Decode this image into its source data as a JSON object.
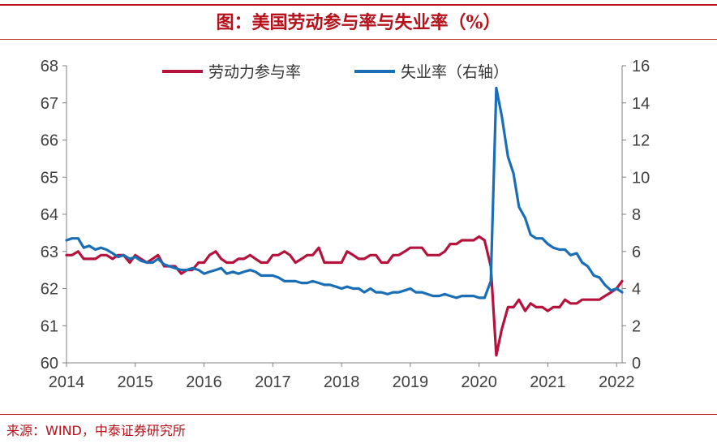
{
  "title": "图：美国劳动参与率与失业率（%）",
  "source": "来源：WIND，中泰证券研究所",
  "chart_data": {
    "type": "line",
    "title": "图：美国劳动参与率与失业率（%）",
    "x_range": [
      2014.0,
      2022.08
    ],
    "x_ticks": [
      "2014",
      "2015",
      "2016",
      "2017",
      "2018",
      "2019",
      "2020",
      "2021",
      "2022"
    ],
    "y_left": {
      "range": [
        60,
        68
      ],
      "ticks": [
        "60",
        "61",
        "62",
        "63",
        "64",
        "65",
        "66",
        "67",
        "68"
      ]
    },
    "y_right": {
      "range": [
        0,
        16
      ],
      "ticks": [
        "0",
        "2",
        "4",
        "6",
        "8",
        "10",
        "12",
        "14",
        "16"
      ]
    },
    "legend_position": "top-center",
    "grid": false,
    "series": [
      {
        "name": "劳动力参与率",
        "axis": "left",
        "color": "#b5123c",
        "points": [
          [
            2014.0,
            62.9
          ],
          [
            2014.08,
            62.9
          ],
          [
            2014.17,
            63.0
          ],
          [
            2014.25,
            62.8
          ],
          [
            2014.33,
            62.8
          ],
          [
            2014.42,
            62.8
          ],
          [
            2014.5,
            62.9
          ],
          [
            2014.58,
            62.9
          ],
          [
            2014.67,
            62.8
          ],
          [
            2014.75,
            62.9
          ],
          [
            2014.83,
            62.9
          ],
          [
            2014.92,
            62.7
          ],
          [
            2015.0,
            62.9
          ],
          [
            2015.08,
            62.8
          ],
          [
            2015.17,
            62.7
          ],
          [
            2015.25,
            62.8
          ],
          [
            2015.33,
            62.9
          ],
          [
            2015.42,
            62.6
          ],
          [
            2015.5,
            62.6
          ],
          [
            2015.58,
            62.6
          ],
          [
            2015.67,
            62.4
          ],
          [
            2015.75,
            62.5
          ],
          [
            2015.83,
            62.5
          ],
          [
            2015.92,
            62.7
          ],
          [
            2016.0,
            62.7
          ],
          [
            2016.08,
            62.9
          ],
          [
            2016.17,
            63.0
          ],
          [
            2016.25,
            62.8
          ],
          [
            2016.33,
            62.7
          ],
          [
            2016.42,
            62.7
          ],
          [
            2016.5,
            62.8
          ],
          [
            2016.58,
            62.8
          ],
          [
            2016.67,
            62.9
          ],
          [
            2016.75,
            62.8
          ],
          [
            2016.83,
            62.7
          ],
          [
            2016.92,
            62.7
          ],
          [
            2017.0,
            62.9
          ],
          [
            2017.08,
            62.9
          ],
          [
            2017.17,
            63.0
          ],
          [
            2017.25,
            62.9
          ],
          [
            2017.33,
            62.7
          ],
          [
            2017.42,
            62.8
          ],
          [
            2017.5,
            62.9
          ],
          [
            2017.58,
            62.9
          ],
          [
            2017.67,
            63.1
          ],
          [
            2017.75,
            62.7
          ],
          [
            2017.83,
            62.7
          ],
          [
            2017.92,
            62.7
          ],
          [
            2018.0,
            62.7
          ],
          [
            2018.08,
            63.0
          ],
          [
            2018.17,
            62.9
          ],
          [
            2018.25,
            62.8
          ],
          [
            2018.33,
            62.8
          ],
          [
            2018.42,
            62.9
          ],
          [
            2018.5,
            62.9
          ],
          [
            2018.58,
            62.7
          ],
          [
            2018.67,
            62.7
          ],
          [
            2018.75,
            62.9
          ],
          [
            2018.83,
            62.9
          ],
          [
            2018.92,
            63.0
          ],
          [
            2019.0,
            63.1
          ],
          [
            2019.08,
            63.1
          ],
          [
            2019.17,
            63.1
          ],
          [
            2019.25,
            62.9
          ],
          [
            2019.33,
            62.9
          ],
          [
            2019.42,
            62.9
          ],
          [
            2019.5,
            63.0
          ],
          [
            2019.58,
            63.2
          ],
          [
            2019.67,
            63.2
          ],
          [
            2019.75,
            63.3
          ],
          [
            2019.83,
            63.3
          ],
          [
            2019.92,
            63.3
          ],
          [
            2020.0,
            63.4
          ],
          [
            2020.08,
            63.3
          ],
          [
            2020.17,
            62.6
          ],
          [
            2020.25,
            60.2
          ],
          [
            2020.33,
            60.9
          ],
          [
            2020.42,
            61.5
          ],
          [
            2020.5,
            61.5
          ],
          [
            2020.58,
            61.7
          ],
          [
            2020.67,
            61.4
          ],
          [
            2020.75,
            61.6
          ],
          [
            2020.83,
            61.5
          ],
          [
            2020.92,
            61.5
          ],
          [
            2021.0,
            61.4
          ],
          [
            2021.08,
            61.5
          ],
          [
            2021.17,
            61.5
          ],
          [
            2021.25,
            61.7
          ],
          [
            2021.33,
            61.6
          ],
          [
            2021.42,
            61.6
          ],
          [
            2021.5,
            61.7
          ],
          [
            2021.58,
            61.7
          ],
          [
            2021.67,
            61.7
          ],
          [
            2021.75,
            61.7
          ],
          [
            2021.83,
            61.8
          ],
          [
            2021.92,
            61.9
          ],
          [
            2022.0,
            62.0
          ],
          [
            2022.08,
            62.2
          ]
        ]
      },
      {
        "name": "失业率（右轴）",
        "axis": "right",
        "color": "#1a6eb5",
        "points": [
          [
            2014.0,
            6.6
          ],
          [
            2014.08,
            6.7
          ],
          [
            2014.17,
            6.7
          ],
          [
            2014.25,
            6.2
          ],
          [
            2014.33,
            6.3
          ],
          [
            2014.42,
            6.1
          ],
          [
            2014.5,
            6.2
          ],
          [
            2014.58,
            6.1
          ],
          [
            2014.67,
            5.9
          ],
          [
            2014.75,
            5.7
          ],
          [
            2014.83,
            5.8
          ],
          [
            2014.92,
            5.6
          ],
          [
            2015.0,
            5.7
          ],
          [
            2015.08,
            5.5
          ],
          [
            2015.17,
            5.4
          ],
          [
            2015.25,
            5.4
          ],
          [
            2015.33,
            5.6
          ],
          [
            2015.42,
            5.3
          ],
          [
            2015.5,
            5.2
          ],
          [
            2015.58,
            5.1
          ],
          [
            2015.67,
            5.0
          ],
          [
            2015.75,
            5.0
          ],
          [
            2015.83,
            5.1
          ],
          [
            2015.92,
            5.0
          ],
          [
            2016.0,
            4.8
          ],
          [
            2016.08,
            4.9
          ],
          [
            2016.17,
            5.0
          ],
          [
            2016.25,
            5.1
          ],
          [
            2016.33,
            4.8
          ],
          [
            2016.42,
            4.9
          ],
          [
            2016.5,
            4.8
          ],
          [
            2016.58,
            4.9
          ],
          [
            2016.67,
            5.0
          ],
          [
            2016.75,
            4.9
          ],
          [
            2016.83,
            4.7
          ],
          [
            2016.92,
            4.7
          ],
          [
            2017.0,
            4.7
          ],
          [
            2017.08,
            4.6
          ],
          [
            2017.17,
            4.4
          ],
          [
            2017.25,
            4.4
          ],
          [
            2017.33,
            4.4
          ],
          [
            2017.42,
            4.3
          ],
          [
            2017.5,
            4.3
          ],
          [
            2017.58,
            4.4
          ],
          [
            2017.67,
            4.3
          ],
          [
            2017.75,
            4.2
          ],
          [
            2017.83,
            4.2
          ],
          [
            2017.92,
            4.1
          ],
          [
            2018.0,
            4.0
          ],
          [
            2018.08,
            4.1
          ],
          [
            2018.17,
            4.0
          ],
          [
            2018.25,
            4.0
          ],
          [
            2018.33,
            3.8
          ],
          [
            2018.42,
            4.0
          ],
          [
            2018.5,
            3.8
          ],
          [
            2018.58,
            3.8
          ],
          [
            2018.67,
            3.7
          ],
          [
            2018.75,
            3.8
          ],
          [
            2018.83,
            3.8
          ],
          [
            2018.92,
            3.9
          ],
          [
            2019.0,
            4.0
          ],
          [
            2019.08,
            3.8
          ],
          [
            2019.17,
            3.8
          ],
          [
            2019.25,
            3.7
          ],
          [
            2019.33,
            3.6
          ],
          [
            2019.42,
            3.6
          ],
          [
            2019.5,
            3.7
          ],
          [
            2019.58,
            3.6
          ],
          [
            2019.67,
            3.5
          ],
          [
            2019.75,
            3.6
          ],
          [
            2019.83,
            3.6
          ],
          [
            2019.92,
            3.6
          ],
          [
            2020.0,
            3.5
          ],
          [
            2020.08,
            3.5
          ],
          [
            2020.17,
            4.4
          ],
          [
            2020.25,
            14.8
          ],
          [
            2020.33,
            13.3
          ],
          [
            2020.42,
            11.1
          ],
          [
            2020.5,
            10.2
          ],
          [
            2020.58,
            8.4
          ],
          [
            2020.67,
            7.8
          ],
          [
            2020.75,
            6.9
          ],
          [
            2020.83,
            6.7
          ],
          [
            2020.92,
            6.7
          ],
          [
            2021.0,
            6.4
          ],
          [
            2021.08,
            6.2
          ],
          [
            2021.17,
            6.1
          ],
          [
            2021.25,
            6.1
          ],
          [
            2021.33,
            5.8
          ],
          [
            2021.42,
            5.9
          ],
          [
            2021.5,
            5.4
          ],
          [
            2021.58,
            5.2
          ],
          [
            2021.67,
            4.7
          ],
          [
            2021.75,
            4.6
          ],
          [
            2021.83,
            4.2
          ],
          [
            2021.92,
            3.9
          ],
          [
            2022.0,
            4.0
          ],
          [
            2022.08,
            3.8
          ]
        ]
      }
    ]
  }
}
